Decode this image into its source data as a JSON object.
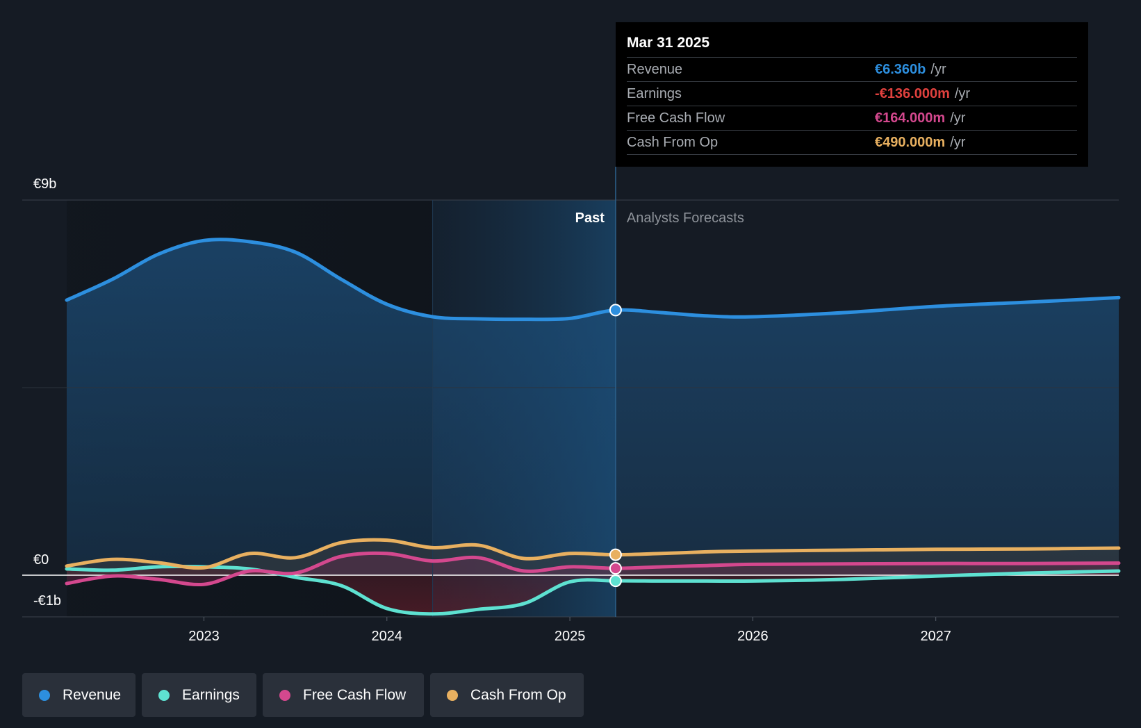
{
  "chart_data": {
    "type": "area",
    "title": "",
    "y_tick_labels": [
      "€9b",
      "€0",
      "-€1b"
    ],
    "x_tick_labels": [
      "2023",
      "2024",
      "2025",
      "2026",
      "2027"
    ],
    "ylim": [
      -1,
      9
    ],
    "xlim": [
      2022.25,
      2028.0
    ],
    "past_label": "Past",
    "forecast_label": "Analysts Forecasts",
    "divider_x": 2025.25,
    "series": [
      {
        "name": "Revenue",
        "color": "#2d8fdf",
        "points": [
          [
            2022.25,
            6.6
          ],
          [
            2022.5,
            7.1
          ],
          [
            2022.75,
            7.7
          ],
          [
            2023.0,
            8.03
          ],
          [
            2023.25,
            8.0
          ],
          [
            2023.5,
            7.75
          ],
          [
            2023.75,
            7.1
          ],
          [
            2024.0,
            6.5
          ],
          [
            2024.25,
            6.2
          ],
          [
            2024.5,
            6.15
          ],
          [
            2024.75,
            6.14
          ],
          [
            2025.0,
            6.16
          ],
          [
            2025.25,
            6.36
          ],
          [
            2025.5,
            6.3
          ],
          [
            2025.75,
            6.22
          ],
          [
            2026.0,
            6.2
          ],
          [
            2026.5,
            6.3
          ],
          [
            2027.0,
            6.45
          ],
          [
            2027.5,
            6.55
          ],
          [
            2028.0,
            6.66
          ]
        ]
      },
      {
        "name": "Earnings",
        "color": "#5ee1d1",
        "points": [
          [
            2022.25,
            0.15
          ],
          [
            2022.5,
            0.12
          ],
          [
            2022.75,
            0.2
          ],
          [
            2023.0,
            0.2
          ],
          [
            2023.25,
            0.15
          ],
          [
            2023.5,
            -0.05
          ],
          [
            2023.75,
            -0.25
          ],
          [
            2024.0,
            -0.8
          ],
          [
            2024.25,
            -0.93
          ],
          [
            2024.5,
            -0.82
          ],
          [
            2024.75,
            -0.68
          ],
          [
            2025.0,
            -0.16
          ],
          [
            2025.25,
            -0.136
          ],
          [
            2025.5,
            -0.14
          ],
          [
            2025.75,
            -0.14
          ],
          [
            2026.0,
            -0.14
          ],
          [
            2026.5,
            -0.1
          ],
          [
            2027.0,
            -0.02
          ],
          [
            2027.5,
            0.05
          ],
          [
            2028.0,
            0.1
          ]
        ]
      },
      {
        "name": "Free Cash Flow",
        "color": "#d4488e",
        "points": [
          [
            2022.25,
            -0.2
          ],
          [
            2022.5,
            -0.02
          ],
          [
            2022.75,
            -0.1
          ],
          [
            2023.0,
            -0.22
          ],
          [
            2023.25,
            0.1
          ],
          [
            2023.5,
            0.05
          ],
          [
            2023.75,
            0.45
          ],
          [
            2024.0,
            0.52
          ],
          [
            2024.25,
            0.34
          ],
          [
            2024.5,
            0.42
          ],
          [
            2024.75,
            0.1
          ],
          [
            2025.0,
            0.2
          ],
          [
            2025.25,
            0.164
          ],
          [
            2025.5,
            0.2
          ],
          [
            2025.75,
            0.23
          ],
          [
            2026.0,
            0.26
          ],
          [
            2026.5,
            0.27
          ],
          [
            2027.0,
            0.28
          ],
          [
            2027.5,
            0.28
          ],
          [
            2028.0,
            0.29
          ]
        ]
      },
      {
        "name": "Cash From Op",
        "color": "#e8b060",
        "points": [
          [
            2022.25,
            0.22
          ],
          [
            2022.5,
            0.38
          ],
          [
            2022.75,
            0.3
          ],
          [
            2023.0,
            0.18
          ],
          [
            2023.25,
            0.52
          ],
          [
            2023.5,
            0.42
          ],
          [
            2023.75,
            0.78
          ],
          [
            2024.0,
            0.84
          ],
          [
            2024.25,
            0.66
          ],
          [
            2024.5,
            0.72
          ],
          [
            2024.75,
            0.4
          ],
          [
            2025.0,
            0.52
          ],
          [
            2025.25,
            0.49
          ],
          [
            2025.5,
            0.52
          ],
          [
            2025.75,
            0.56
          ],
          [
            2026.0,
            0.58
          ],
          [
            2026.5,
            0.6
          ],
          [
            2027.0,
            0.62
          ],
          [
            2027.5,
            0.63
          ],
          [
            2028.0,
            0.65
          ]
        ]
      }
    ]
  },
  "tooltip": {
    "date": "Mar 31 2025",
    "rows": [
      {
        "label": "Revenue",
        "value": "€6.360b",
        "unit": "/yr",
        "color": "#2d8fdf"
      },
      {
        "label": "Earnings",
        "value": "-€136.000m",
        "unit": "/yr",
        "color": "#e0413e"
      },
      {
        "label": "Free Cash Flow",
        "value": "€164.000m",
        "unit": "/yr",
        "color": "#d4488e"
      },
      {
        "label": "Cash From Op",
        "value": "€490.000m",
        "unit": "/yr",
        "color": "#e8b060"
      }
    ]
  },
  "legend": [
    {
      "label": "Revenue",
      "color": "#2d8fdf"
    },
    {
      "label": "Earnings",
      "color": "#5ee1d1"
    },
    {
      "label": "Free Cash Flow",
      "color": "#d4488e"
    },
    {
      "label": "Cash From Op",
      "color": "#e8b060"
    }
  ]
}
